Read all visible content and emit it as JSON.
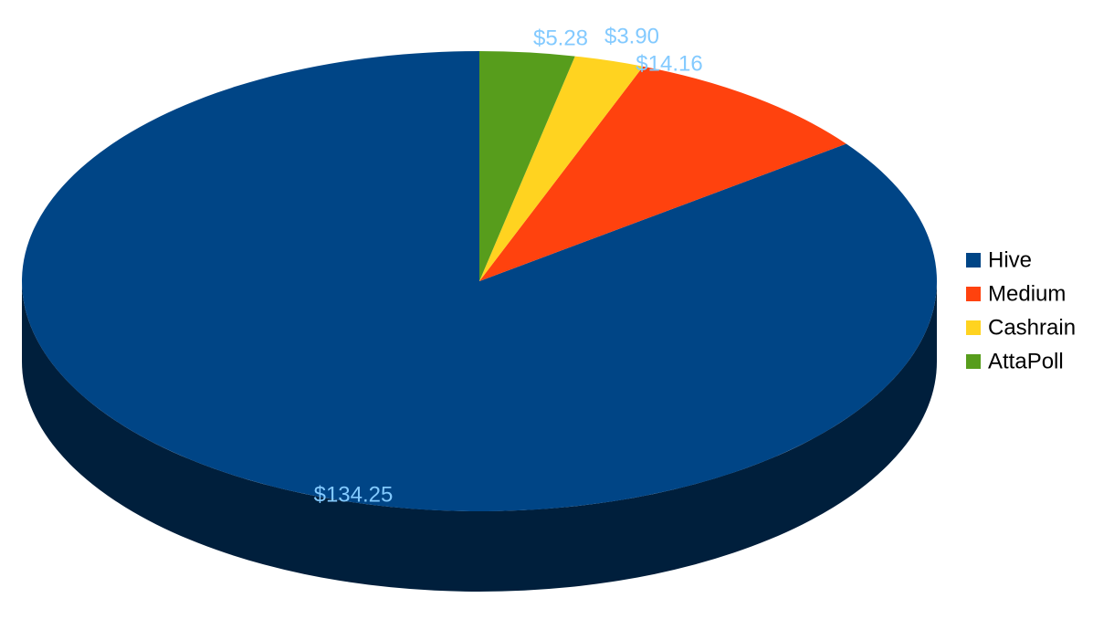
{
  "chart_data": {
    "type": "pie",
    "categories": [
      "Hive",
      "Medium",
      "Cashrain",
      "AttaPoll"
    ],
    "values": [
      134.25,
      14.16,
      3.9,
      5.28
    ],
    "value_labels": [
      "$134.25",
      "$14.16",
      "$3.90",
      "$5.28"
    ],
    "colors": [
      "#004586",
      "#ff420e",
      "#ffd320",
      "#579d1c"
    ],
    "legend": "right"
  }
}
